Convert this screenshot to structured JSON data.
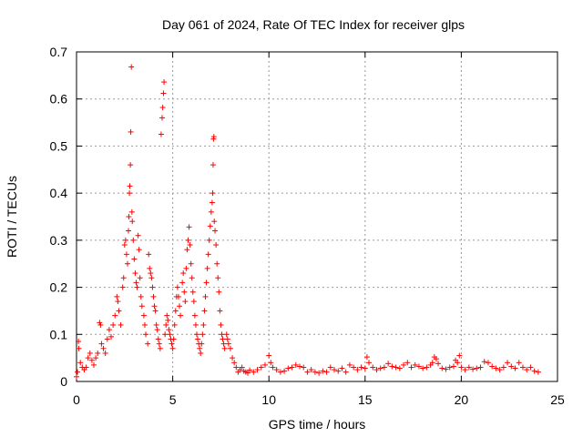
{
  "chart_data": {
    "type": "scatter",
    "title": "Day 061 of 2024, Rate Of TEC Index for receiver glps",
    "xlabel": "GPS time / hours",
    "ylabel": "ROTI / TECUs",
    "xlim": [
      0,
      25
    ],
    "ylim": [
      0,
      0.7
    ],
    "xticks": [
      0,
      5,
      10,
      15,
      20,
      25
    ],
    "yticks": [
      0,
      0.1,
      0.2,
      0.3,
      0.4,
      0.5,
      0.6,
      0.7
    ],
    "xtick_labels": [
      "0",
      "5",
      "10",
      "15",
      "20",
      "25"
    ],
    "ytick_labels": [
      "0",
      "0.1",
      "0.2",
      "0.3",
      "0.4",
      "0.5",
      "0.6",
      "0.7"
    ],
    "grid": true,
    "series": [
      {
        "name": "glps",
        "marker": "+",
        "color": "#ff0000",
        "points": [
          [
            0.0,
            0.01
          ],
          [
            0.05,
            0.02
          ],
          [
            0.1,
            0.085
          ],
          [
            0.12,
            0.07
          ],
          [
            0.2,
            0.04
          ],
          [
            0.3,
            0.03
          ],
          [
            0.4,
            0.025
          ],
          [
            0.5,
            0.03
          ],
          [
            0.6,
            0.05
          ],
          [
            0.7,
            0.06
          ],
          [
            0.8,
            0.045
          ],
          [
            0.9,
            0.035
          ],
          [
            1.0,
            0.05
          ],
          [
            1.1,
            0.06
          ],
          [
            1.2,
            0.125
          ],
          [
            1.25,
            0.12
          ],
          [
            1.3,
            0.08
          ],
          [
            1.4,
            0.07
          ],
          [
            1.5,
            0.06
          ],
          [
            1.6,
            0.09
          ],
          [
            1.7,
            0.11
          ],
          [
            1.8,
            0.095
          ],
          [
            1.9,
            0.12
          ],
          [
            2.0,
            0.14
          ],
          [
            2.1,
            0.18
          ],
          [
            2.15,
            0.17
          ],
          [
            2.2,
            0.15
          ],
          [
            2.3,
            0.12
          ],
          [
            2.4,
            0.2
          ],
          [
            2.45,
            0.22
          ],
          [
            2.5,
            0.29
          ],
          [
            2.55,
            0.3
          ],
          [
            2.6,
            0.27
          ],
          [
            2.65,
            0.25
          ],
          [
            2.7,
            0.32
          ],
          [
            2.72,
            0.35
          ],
          [
            2.75,
            0.4
          ],
          [
            2.77,
            0.415
          ],
          [
            2.8,
            0.46
          ],
          [
            2.82,
            0.53
          ],
          [
            2.85,
            0.668
          ],
          [
            2.88,
            0.36
          ],
          [
            2.9,
            0.34
          ],
          [
            2.95,
            0.3
          ],
          [
            3.0,
            0.26
          ],
          [
            3.05,
            0.23
          ],
          [
            3.1,
            0.21
          ],
          [
            3.15,
            0.2
          ],
          [
            3.2,
            0.31
          ],
          [
            3.25,
            0.28
          ],
          [
            3.3,
            0.22
          ],
          [
            3.35,
            0.18
          ],
          [
            3.4,
            0.16
          ],
          [
            3.5,
            0.14
          ],
          [
            3.55,
            0.12
          ],
          [
            3.6,
            0.1
          ],
          [
            3.7,
            0.08
          ],
          [
            3.75,
            0.27
          ],
          [
            3.8,
            0.24
          ],
          [
            3.85,
            0.23
          ],
          [
            3.9,
            0.22
          ],
          [
            3.95,
            0.2
          ],
          [
            4.0,
            0.18
          ],
          [
            4.05,
            0.16
          ],
          [
            4.1,
            0.15
          ],
          [
            4.15,
            0.12
          ],
          [
            4.2,
            0.11
          ],
          [
            4.25,
            0.09
          ],
          [
            4.3,
            0.08
          ],
          [
            4.35,
            0.07
          ],
          [
            4.4,
            0.525
          ],
          [
            4.45,
            0.56
          ],
          [
            4.48,
            0.582
          ],
          [
            4.52,
            0.612
          ],
          [
            4.55,
            0.636
          ],
          [
            4.6,
            0.1
          ],
          [
            4.65,
            0.12
          ],
          [
            4.7,
            0.14
          ],
          [
            4.75,
            0.13
          ],
          [
            4.8,
            0.11
          ],
          [
            4.85,
            0.1
          ],
          [
            4.9,
            0.09
          ],
          [
            4.95,
            0.08
          ],
          [
            5.0,
            0.07
          ],
          [
            5.05,
            0.09
          ],
          [
            5.1,
            0.12
          ],
          [
            5.15,
            0.15
          ],
          [
            5.2,
            0.18
          ],
          [
            5.25,
            0.2
          ],
          [
            5.3,
            0.18
          ],
          [
            5.35,
            0.16
          ],
          [
            5.4,
            0.14
          ],
          [
            5.5,
            0.21
          ],
          [
            5.55,
            0.23
          ],
          [
            5.6,
            0.19
          ],
          [
            5.65,
            0.17
          ],
          [
            5.7,
            0.24
          ],
          [
            5.75,
            0.28
          ],
          [
            5.8,
            0.3
          ],
          [
            5.85,
            0.328
          ],
          [
            5.9,
            0.29
          ],
          [
            5.95,
            0.25
          ],
          [
            6.0,
            0.22
          ],
          [
            6.05,
            0.19
          ],
          [
            6.1,
            0.17
          ],
          [
            6.15,
            0.14
          ],
          [
            6.2,
            0.12
          ],
          [
            6.25,
            0.1
          ],
          [
            6.3,
            0.09
          ],
          [
            6.35,
            0.08
          ],
          [
            6.4,
            0.07
          ],
          [
            6.45,
            0.06
          ],
          [
            6.5,
            0.08
          ],
          [
            6.55,
            0.1
          ],
          [
            6.6,
            0.12
          ],
          [
            6.65,
            0.15
          ],
          [
            6.7,
            0.18
          ],
          [
            6.75,
            0.21
          ],
          [
            6.8,
            0.24
          ],
          [
            6.85,
            0.27
          ],
          [
            6.9,
            0.3
          ],
          [
            6.95,
            0.33
          ],
          [
            7.0,
            0.36
          ],
          [
            7.05,
            0.38
          ],
          [
            7.08,
            0.4
          ],
          [
            7.1,
            0.46
          ],
          [
            7.12,
            0.515
          ],
          [
            7.14,
            0.52
          ],
          [
            7.16,
            0.34
          ],
          [
            7.2,
            0.32
          ],
          [
            7.25,
            0.29
          ],
          [
            7.3,
            0.25
          ],
          [
            7.35,
            0.22
          ],
          [
            7.4,
            0.19
          ],
          [
            7.45,
            0.15
          ],
          [
            7.5,
            0.12
          ],
          [
            7.55,
            0.1
          ],
          [
            7.6,
            0.09
          ],
          [
            7.65,
            0.08
          ],
          [
            7.7,
            0.07
          ],
          [
            7.8,
            0.1
          ],
          [
            7.85,
            0.09
          ],
          [
            7.9,
            0.08
          ],
          [
            8.0,
            0.07
          ],
          [
            8.1,
            0.05
          ],
          [
            8.2,
            0.04
          ],
          [
            8.3,
            0.03
          ],
          [
            8.4,
            0.02
          ],
          [
            8.5,
            0.025
          ],
          [
            8.6,
            0.03
          ],
          [
            8.7,
            0.022
          ],
          [
            8.8,
            0.02
          ],
          [
            8.9,
            0.018
          ],
          [
            9.0,
            0.024
          ],
          [
            9.2,
            0.02
          ],
          [
            9.4,
            0.025
          ],
          [
            9.6,
            0.03
          ],
          [
            9.8,
            0.035
          ],
          [
            10.0,
            0.055
          ],
          [
            10.1,
            0.04
          ],
          [
            10.2,
            0.03
          ],
          [
            10.4,
            0.025
          ],
          [
            10.6,
            0.02
          ],
          [
            10.8,
            0.022
          ],
          [
            11.0,
            0.028
          ],
          [
            11.2,
            0.03
          ],
          [
            11.4,
            0.035
          ],
          [
            11.6,
            0.032
          ],
          [
            11.8,
            0.03
          ],
          [
            12.0,
            0.02
          ],
          [
            12.2,
            0.025
          ],
          [
            12.4,
            0.02
          ],
          [
            12.6,
            0.018
          ],
          [
            12.8,
            0.022
          ],
          [
            13.0,
            0.02
          ],
          [
            13.2,
            0.03
          ],
          [
            13.4,
            0.025
          ],
          [
            13.6,
            0.022
          ],
          [
            13.8,
            0.028
          ],
          [
            14.0,
            0.02
          ],
          [
            14.2,
            0.035
          ],
          [
            14.4,
            0.03
          ],
          [
            14.6,
            0.025
          ],
          [
            14.8,
            0.03
          ],
          [
            15.0,
            0.028
          ],
          [
            15.1,
            0.052
          ],
          [
            15.2,
            0.04
          ],
          [
            15.4,
            0.03
          ],
          [
            15.6,
            0.025
          ],
          [
            15.8,
            0.028
          ],
          [
            16.0,
            0.03
          ],
          [
            16.2,
            0.038
          ],
          [
            16.4,
            0.032
          ],
          [
            16.6,
            0.03
          ],
          [
            16.8,
            0.028
          ],
          [
            17.0,
            0.035
          ],
          [
            17.2,
            0.04
          ],
          [
            17.4,
            0.03
          ],
          [
            17.6,
            0.035
          ],
          [
            17.8,
            0.032
          ],
          [
            18.0,
            0.028
          ],
          [
            18.2,
            0.03
          ],
          [
            18.4,
            0.035
          ],
          [
            18.5,
            0.04
          ],
          [
            18.6,
            0.052
          ],
          [
            18.7,
            0.048
          ],
          [
            18.8,
            0.038
          ],
          [
            19.0,
            0.028
          ],
          [
            19.2,
            0.026
          ],
          [
            19.4,
            0.03
          ],
          [
            19.6,
            0.032
          ],
          [
            19.7,
            0.045
          ],
          [
            19.8,
            0.04
          ],
          [
            19.9,
            0.055
          ],
          [
            20.0,
            0.03
          ],
          [
            20.2,
            0.025
          ],
          [
            20.4,
            0.03
          ],
          [
            20.6,
            0.026
          ],
          [
            20.8,
            0.028
          ],
          [
            21.0,
            0.03
          ],
          [
            21.2,
            0.042
          ],
          [
            21.4,
            0.04
          ],
          [
            21.6,
            0.032
          ],
          [
            21.8,
            0.028
          ],
          [
            22.0,
            0.025
          ],
          [
            22.2,
            0.03
          ],
          [
            22.4,
            0.04
          ],
          [
            22.6,
            0.032
          ],
          [
            22.8,
            0.028
          ],
          [
            23.0,
            0.04
          ],
          [
            23.2,
            0.03
          ],
          [
            23.4,
            0.025
          ],
          [
            23.6,
            0.03
          ],
          [
            23.8,
            0.022
          ],
          [
            24.0,
            0.02
          ]
        ]
      }
    ]
  }
}
